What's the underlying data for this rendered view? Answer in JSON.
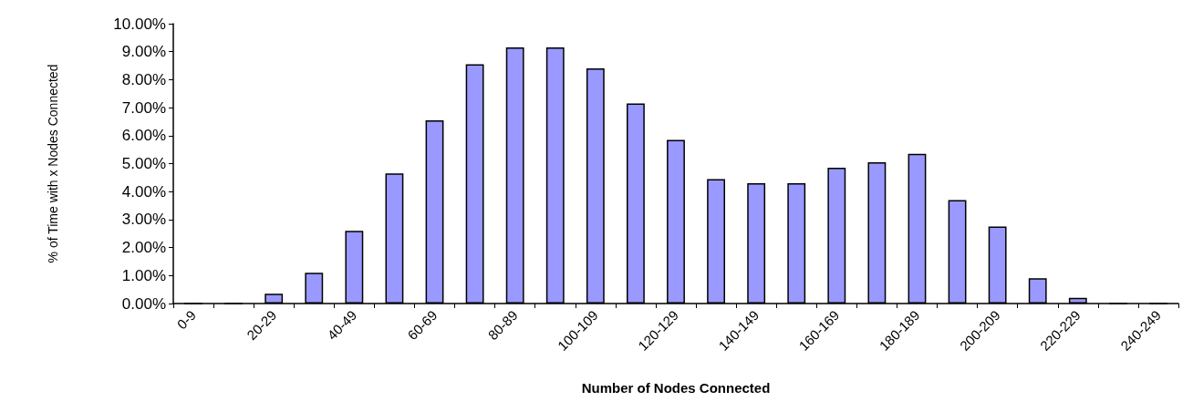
{
  "chart_data": {
    "type": "bar",
    "xlabel": "Number of Nodes Connected",
    "ylabel": "% of Time with x Nodes Connected",
    "categories": [
      "0-9",
      null,
      "20-29",
      null,
      "40-49",
      null,
      "60-69",
      null,
      "80-89",
      null,
      "100-109",
      null,
      "120-129",
      null,
      "140-149",
      null,
      "160-169",
      null,
      "180-189",
      null,
      "200-209",
      null,
      "220-229",
      null,
      "240-249"
    ],
    "values": [
      0,
      0,
      0.35,
      1.1,
      2.6,
      4.65,
      6.55,
      8.55,
      9.15,
      9.15,
      8.4,
      7.15,
      5.85,
      4.45,
      4.3,
      4.3,
      4.85,
      5.05,
      5.35,
      3.7,
      2.75,
      0.9,
      0.2,
      0,
      0
    ],
    "color": "#9999ff",
    "ylim": [
      0,
      10
    ],
    "yticks": [
      {
        "value": 0,
        "label": "0.00%"
      },
      {
        "value": 1,
        "label": "1.00%"
      },
      {
        "value": 2,
        "label": "2.00%"
      },
      {
        "value": 3,
        "label": "3.00%"
      },
      {
        "value": 4,
        "label": "4.00%"
      },
      {
        "value": 5,
        "label": "5.00%"
      },
      {
        "value": 6,
        "label": "6.00%"
      },
      {
        "value": 7,
        "label": "7.00%"
      },
      {
        "value": 8,
        "label": "8.00%"
      },
      {
        "value": 9,
        "label": "9.00%"
      },
      {
        "value": 10,
        "label": "10.00%"
      }
    ],
    "grid": false
  }
}
